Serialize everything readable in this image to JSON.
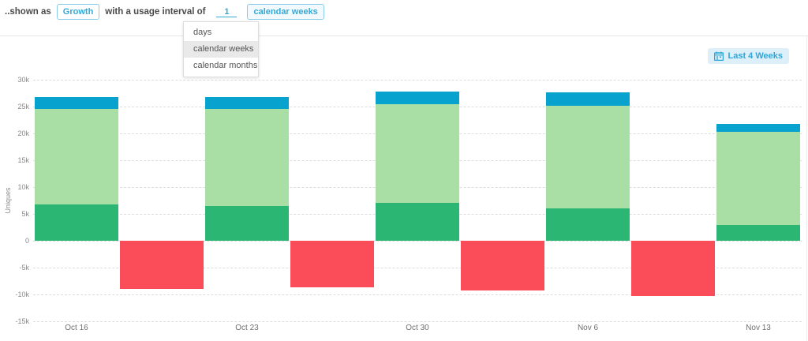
{
  "topbar": {
    "shown_as_label": "..shown as",
    "growth_button_label": "Growth",
    "interval_text": "with a usage interval of",
    "interval_value": "1",
    "interval_unit_label": "calendar weeks"
  },
  "interval_dropdown": {
    "items": [
      {
        "label": "days",
        "selected": false
      },
      {
        "label": "calendar weeks",
        "selected": true
      },
      {
        "label": "calendar months",
        "selected": false
      }
    ]
  },
  "chart_toolbar": {
    "date_range_button_label": "Last 4 Weeks",
    "date_range_icon": "calendar-icon"
  },
  "colors": {
    "accent_teal": "#35A9D6",
    "bar_blue": "#07A2CE",
    "bar_light_green": "#A9DFA4",
    "bar_dark_green": "#2BB673",
    "bar_red": "#FB4D59",
    "range_button_bg": "#DDEFF8",
    "dropdown_highlight_bg": "#E9E9E9",
    "grid_line": "#DDDDDD",
    "topbar_text": "#4A4A4A",
    "axis_text": "#888888"
  },
  "chart_data": {
    "type": "bar",
    "stacked": true,
    "title": "",
    "xlabel": "",
    "ylabel": "Uniques",
    "ylim": [
      -15000,
      30000
    ],
    "grid": "dashed-horizontal",
    "legend_position": "none",
    "categories": [
      "Oct 16",
      "Oct 23",
      "Oct 30",
      "Nov 6",
      "Nov 13"
    ],
    "y_ticks": [
      {
        "value": 30000,
        "label": "30k"
      },
      {
        "value": 25000,
        "label": "25k"
      },
      {
        "value": 20000,
        "label": "20k"
      },
      {
        "value": 15000,
        "label": "15k"
      },
      {
        "value": 10000,
        "label": "10k"
      },
      {
        "value": 5000,
        "label": "5k"
      },
      {
        "value": 0,
        "label": "0"
      },
      {
        "value": -5000,
        "label": "-5k"
      },
      {
        "value": -10000,
        "label": "-10k"
      },
      {
        "value": -15000,
        "label": "-15k"
      }
    ],
    "series": [
      {
        "name": "dark-green-bottom-segment",
        "color": "#2BB673",
        "values": [
          6800,
          6400,
          7000,
          6000,
          2900
        ]
      },
      {
        "name": "light-green-middle-segment",
        "color": "#A9DFA4",
        "values": [
          17700,
          18200,
          18400,
          19100,
          17400
        ]
      },
      {
        "name": "blue-top-segment",
        "color": "#07A2CE",
        "values": [
          2200,
          2200,
          2400,
          2500,
          1400
        ]
      },
      {
        "name": "red-negative-segment",
        "color": "#FB4D59",
        "values": [
          -9000,
          -8700,
          -9200,
          -10300,
          null
        ]
      }
    ]
  }
}
